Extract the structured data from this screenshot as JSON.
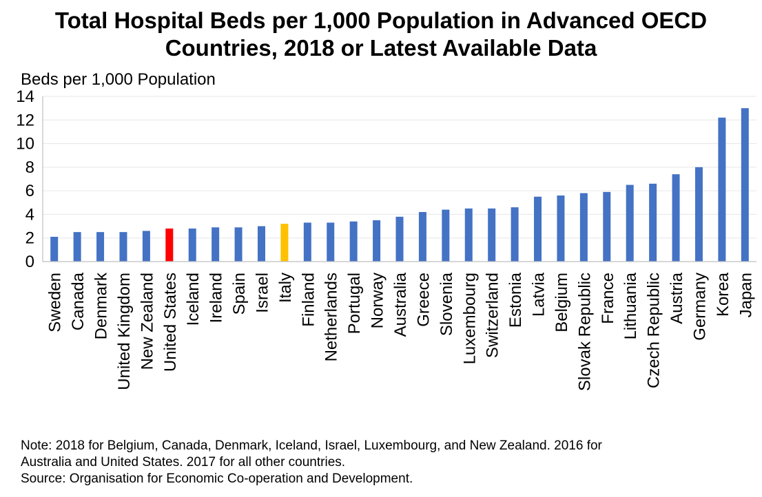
{
  "title_lines": [
    "Total Hospital Beds per 1,000 Population in Advanced OECD",
    "Countries, 2018 or Latest Available Data"
  ],
  "note_lines": [
    "Note: 2018 for Belgium, Canada, Denmark, Iceland, Israel, Luxembourg, and New Zealand. 2016 for",
    "Australia and United States. 2017 for all other countries."
  ],
  "source": "Source: Organisation for Economic Co-operation and Development.",
  "chart_data": {
    "type": "bar",
    "title": "Total Hospital Beds per 1,000 Population in Advanced OECD Countries, 2018 or Latest Available Data",
    "ylabel": "Beds per 1,000 Population",
    "xlabel": "",
    "ylim": [
      0,
      14
    ],
    "yticks": [
      0,
      2,
      4,
      6,
      8,
      10,
      12,
      14
    ],
    "grid": true,
    "categories": [
      "Sweden",
      "Canada",
      "Denmark",
      "United Kingdom",
      "New Zealand",
      "United States",
      "Iceland",
      "Ireland",
      "Spain",
      "Israel",
      "Italy",
      "Finland",
      "Netherlands",
      "Portugal",
      "Norway",
      "Australia",
      "Greece",
      "Slovenia",
      "Luxembourg",
      "Switzerland",
      "Estonia",
      "Latvia",
      "Belgium",
      "Slovak Republic",
      "France",
      "Lithuania",
      "Czech Republic",
      "Austria",
      "Germany",
      "Korea",
      "Japan"
    ],
    "values": [
      2.1,
      2.5,
      2.5,
      2.5,
      2.6,
      2.8,
      2.8,
      2.9,
      2.9,
      3.0,
      3.2,
      3.3,
      3.3,
      3.4,
      3.5,
      3.8,
      4.2,
      4.4,
      4.5,
      4.5,
      4.6,
      5.5,
      5.6,
      5.8,
      5.9,
      6.5,
      6.6,
      7.4,
      8.0,
      12.2,
      13.0
    ],
    "colors": {
      "default": "#4472C4",
      "United States": "#FF0000",
      "Italy": "#FFC000"
    }
  }
}
